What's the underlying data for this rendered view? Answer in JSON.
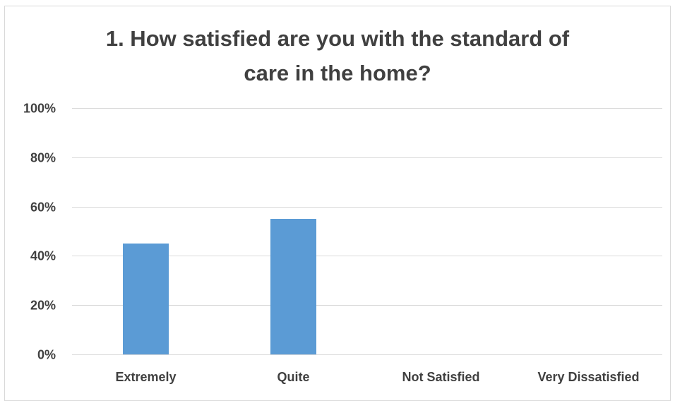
{
  "chart_data": {
    "type": "bar",
    "title": "1. How satisfied are you with the standard of care in the home?",
    "categories": [
      "Extremely",
      "Quite",
      "Not Satisfied",
      "Very Dissatisfied"
    ],
    "values": [
      45,
      55,
      0,
      0
    ],
    "y_tick_labels": [
      "0%",
      "20%",
      "40%",
      "60%",
      "80%",
      "100%"
    ],
    "y_ticks": [
      0,
      20,
      40,
      60,
      80,
      100
    ],
    "ylim": [
      0,
      100
    ],
    "xlabel": "",
    "ylabel": "",
    "grid": true,
    "legend": "none",
    "bar_color": "#5b9bd5",
    "grid_color": "#d9d9d9"
  }
}
